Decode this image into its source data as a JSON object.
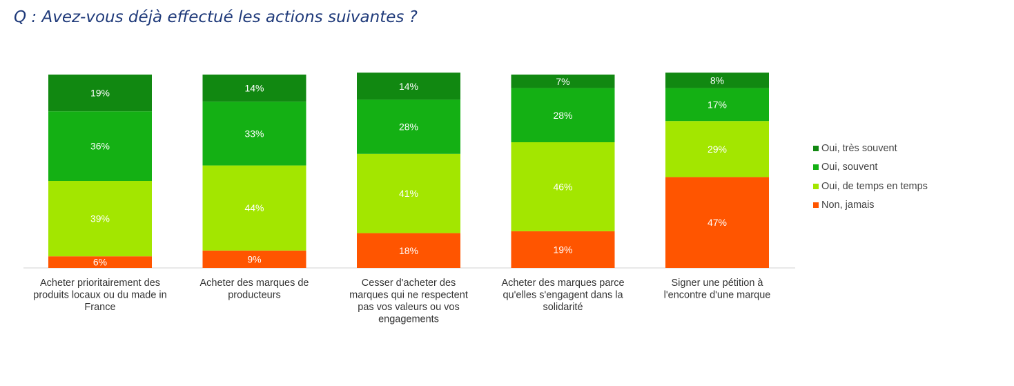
{
  "question": "Q : Avez-vous déjà effectué les actions suivantes ?",
  "chart_data": {
    "type": "bar",
    "stacked": true,
    "normalized": true,
    "title": "",
    "xlabel": "",
    "ylabel": "",
    "ylim": [
      0,
      100
    ],
    "grid": false,
    "legend_position": "right",
    "categories": [
      [
        "Acheter prioritairement des",
        "produits locaux ou du made in",
        "France"
      ],
      [
        "Acheter des marques de",
        "producteurs"
      ],
      [
        "Cesser d'acheter des",
        "marques qui ne respectent",
        "pas vos valeurs ou vos",
        "engagements"
      ],
      [
        "Acheter des marques parce",
        "qu'elles s'engagent dans la",
        "solidarité"
      ],
      [
        "Signer une pétition à",
        "l'encontre d'une marque"
      ]
    ],
    "series": [
      {
        "name": "Non, jamais",
        "color": "#ff5500",
        "values": [
          6,
          9,
          18,
          19,
          47
        ],
        "labels": [
          "6%",
          "9%",
          "18%",
          "19%",
          "47%"
        ]
      },
      {
        "name": "Oui, de temps en temps",
        "color": "#a3e600",
        "values": [
          39,
          44,
          41,
          46,
          29
        ],
        "labels": [
          "39%",
          "44%",
          "41%",
          "46%",
          "29%"
        ]
      },
      {
        "name": "Oui, souvent",
        "color": "#14b014",
        "values": [
          36,
          33,
          28,
          28,
          17
        ],
        "labels": [
          "36%",
          "33%",
          "28%",
          "28%",
          "17%"
        ]
      },
      {
        "name": "Oui, très souvent",
        "color": "#118811",
        "values": [
          19,
          14,
          14,
          7,
          8
        ],
        "labels": [
          "19%",
          "14%",
          "14%",
          "7%",
          "8%"
        ]
      }
    ],
    "legend_order": [
      {
        "name": "Oui, très souvent",
        "color": "#118811"
      },
      {
        "name": "Oui, souvent",
        "color": "#14b014"
      },
      {
        "name": "Oui, de temps en temps",
        "color": "#a3e600"
      },
      {
        "name": "Non, jamais",
        "color": "#ff5500"
      }
    ]
  }
}
